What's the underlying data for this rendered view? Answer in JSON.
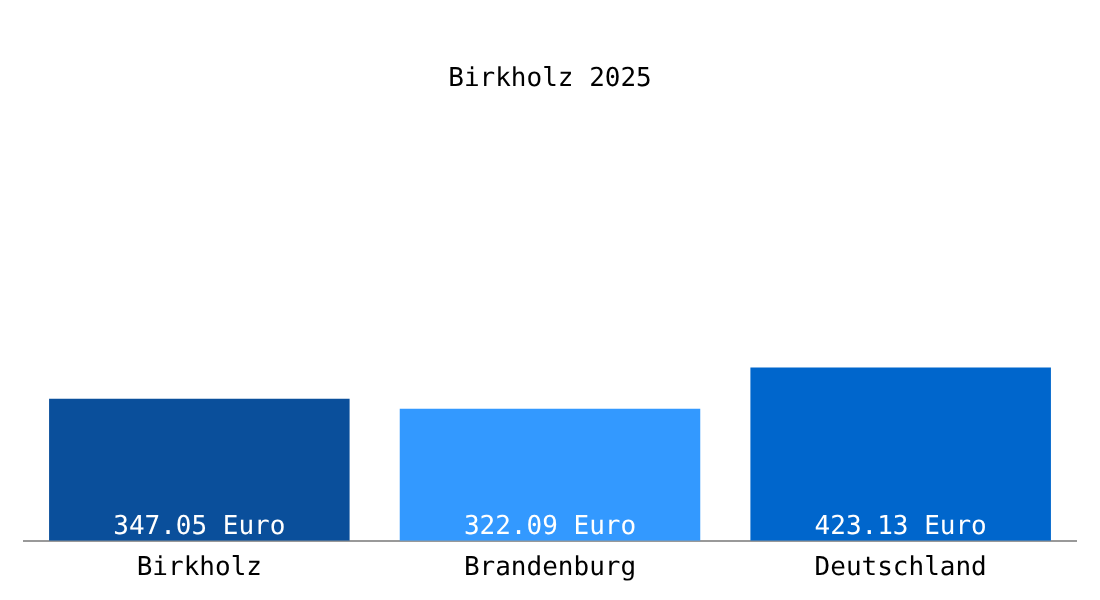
{
  "chart_data": {
    "type": "bar",
    "title": "Birkholz 2025",
    "categories": [
      "Birkholz",
      "Brandenburg",
      "Deutschland"
    ],
    "values": [
      347.05,
      322.09,
      423.13
    ],
    "colors": [
      "#0a4f9b",
      "#3399ff",
      "#0066cc"
    ],
    "value_labels": [
      "347.05 Euro",
      "322.09 Euro",
      "423.13 Euro"
    ],
    "grid": false,
    "legend": false
  }
}
